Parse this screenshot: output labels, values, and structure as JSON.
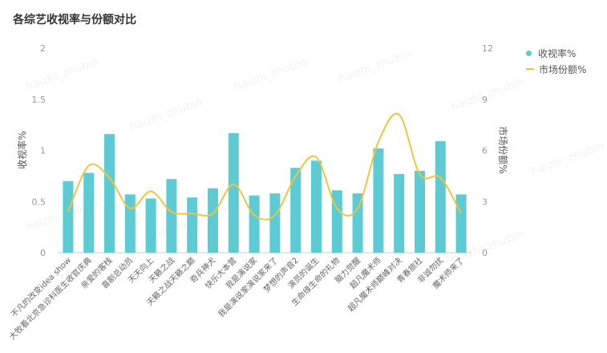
{
  "title": "各综艺收视率与份额对比",
  "watermark_text": "haizhi_zhubin",
  "colors": {
    "bar": "#5ccbd3",
    "line": "#f0c43f",
    "axis_text": "#999999",
    "grid": "#eeeeee"
  },
  "legend": [
    {
      "label": "收视率%",
      "kind": "dot"
    },
    {
      "label": "市场份额%",
      "kind": "line"
    }
  ],
  "chart_data": {
    "type": "bar+line",
    "title": "各综艺收视率与份额对比",
    "categories": [
      "不凡的改变idea show",
      "大牧看北京急诊科医生收官庆典",
      "亲爱的客栈",
      "喜剧总动员",
      "天天向上",
      "天籁之战",
      "天籁之战天籁之巅",
      "奇兵神犬",
      "快乐大本营",
      "我是演说家",
      "我是演说家演说家来了",
      "梦想的声音2",
      "演员的诞生",
      "生命缘生命的礼物",
      "脑力觉醒",
      "超凡魔术师",
      "超凡魔术师巅峰对决",
      "青春旅社",
      "非诚勿扰",
      "魔术师来了"
    ],
    "series": [
      {
        "name": "收视率%",
        "type": "bar",
        "axis": "left",
        "values": [
          0.7,
          0.78,
          1.16,
          0.57,
          0.53,
          0.72,
          0.54,
          0.63,
          1.17,
          0.56,
          0.58,
          0.83,
          0.9,
          0.61,
          0.58,
          1.02,
          0.77,
          0.8,
          1.09,
          0.57
        ]
      },
      {
        "name": "市场份额%",
        "type": "line",
        "axis": "right",
        "values": [
          2.4,
          5.1,
          4.4,
          2.6,
          3.6,
          2.4,
          2.3,
          2.3,
          4.0,
          2.2,
          2.2,
          4.5,
          5.6,
          2.6,
          2.6,
          6.5,
          8.1,
          4.6,
          4.4,
          2.3
        ]
      }
    ],
    "ylabel": "收视率%",
    "y2label": "市场份额%",
    "ylim": [
      0,
      2
    ],
    "y2lim": [
      0,
      12
    ],
    "yticks": [
      "0",
      "0.5",
      "1",
      "1.5",
      "2"
    ],
    "y2ticks": [
      "0",
      "3",
      "6",
      "9",
      "12"
    ],
    "legend_position": "top-right"
  }
}
